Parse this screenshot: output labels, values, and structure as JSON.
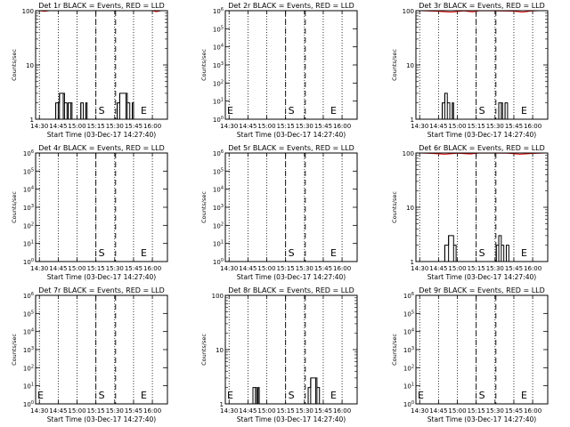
{
  "figure": {
    "ylabel": "Counts/sec",
    "xlabel": "Start Time (03-Dec-17 14:27:40)"
  },
  "colors": {
    "events": "#000000",
    "lld": "#dd0000",
    "frame": "#000000"
  },
  "chart_data": [
    {
      "type": "line",
      "title": "Det 1r BLACK = Events, RED = LLD",
      "xticks": [
        "14:30",
        "14:45",
        "15:00",
        "15:15",
        "15:30",
        "15:45",
        "16:00"
      ],
      "yscale": "log",
      "ylim": [
        1,
        100
      ],
      "yticks": [
        "1",
        "10",
        "100"
      ],
      "markers": {
        "S": "15:15",
        "E": "15:45"
      },
      "events": [
        [
          "14:42",
          1
        ],
        [
          "14:43",
          2
        ],
        [
          "14:45",
          2
        ],
        [
          "14:46",
          3
        ],
        [
          "14:49",
          3
        ],
        [
          "14:50",
          2
        ],
        [
          "14:52",
          1
        ],
        [
          "14:53",
          2
        ],
        [
          "14:55",
          2
        ],
        [
          "14:56",
          1
        ],
        [
          "15:02",
          1
        ],
        [
          "15:03",
          2
        ],
        [
          "15:05",
          1
        ],
        [
          "15:06",
          1
        ],
        [
          "15:07",
          2
        ],
        [
          "15:08",
          1
        ],
        [
          "15:31",
          1
        ],
        [
          "15:32",
          2
        ],
        [
          "15:34",
          3
        ],
        [
          "15:39",
          3
        ],
        [
          "15:40",
          2
        ],
        [
          "15:42",
          1
        ],
        [
          "15:44",
          2
        ],
        [
          "15:45",
          1
        ]
      ],
      "lld": [
        [
          "14:30",
          100
        ],
        [
          "14:34",
          97
        ],
        [
          "14:38",
          100
        ],
        [
          "16:00",
          100
        ],
        [
          "16:03",
          96
        ],
        [
          "16:07",
          100
        ]
      ]
    },
    {
      "type": "line",
      "title": "Det 2r BLACK = Events, RED = LLD",
      "xticks": [
        "14:30",
        "14:45",
        "15:00",
        "15:15",
        "15:30",
        "15:45",
        "16:00"
      ],
      "yscale": "log",
      "ylim": [
        1,
        1000000
      ],
      "yticks": [
        "10^0",
        "10^1",
        "10^2",
        "10^3",
        "10^4",
        "10^5",
        "10^6"
      ],
      "markers": {
        "E": "14:30",
        "S": "15:15",
        "E2": "15:45"
      },
      "events": [],
      "lld": []
    },
    {
      "type": "line",
      "title": "Det 3r BLACK = Events, RED = LLD",
      "xticks": [
        "14:30",
        "14:45",
        "15:00",
        "15:15",
        "15:30",
        "15:45",
        "16:00"
      ],
      "yscale": "log",
      "ylim": [
        1,
        100
      ],
      "yticks": [
        "1",
        "10",
        "100"
      ],
      "markers": {
        "S": "15:15",
        "E": "15:45"
      },
      "events": [
        [
          "14:47",
          1
        ],
        [
          "14:48",
          2
        ],
        [
          "14:50",
          3
        ],
        [
          "14:52",
          2
        ],
        [
          "14:54",
          1
        ],
        [
          "14:56",
          2
        ],
        [
          "14:57",
          1
        ],
        [
          "15:31",
          1
        ],
        [
          "15:33",
          2
        ],
        [
          "15:35",
          2
        ],
        [
          "15:36",
          1
        ],
        [
          "15:38",
          2
        ],
        [
          "15:40",
          1
        ]
      ],
      "lld": [
        [
          "14:30",
          100
        ],
        [
          "14:45",
          97
        ],
        [
          "14:55",
          94
        ],
        [
          "15:05",
          99
        ],
        [
          "15:12",
          95
        ],
        [
          "15:18",
          100
        ],
        [
          "15:44",
          98
        ],
        [
          "15:52",
          94
        ],
        [
          "15:58",
          98
        ],
        [
          "16:05",
          100
        ]
      ]
    },
    {
      "type": "line",
      "title": "Det 4r BLACK = Events, RED = LLD",
      "xticks": [
        "14:30",
        "14:45",
        "15:00",
        "15:15",
        "15:30",
        "15:45",
        "16:00"
      ],
      "yscale": "log",
      "ylim": [
        1,
        1000000
      ],
      "yticks": [
        "10^0",
        "10^1",
        "10^2",
        "10^3",
        "10^4",
        "10^5",
        "10^6"
      ],
      "markers": {
        "S": "15:15",
        "E": "15:45"
      },
      "events": [],
      "lld": []
    },
    {
      "type": "line",
      "title": "Det 5r BLACK = Events, RED = LLD",
      "xticks": [
        "14:30",
        "14:45",
        "15:00",
        "15:15",
        "15:30",
        "15:45",
        "16:00"
      ],
      "yscale": "log",
      "ylim": [
        1,
        1000000
      ],
      "yticks": [
        "10^0",
        "10^1",
        "10^2",
        "10^3",
        "10^4",
        "10^5",
        "10^6"
      ],
      "markers": {
        "S": "15:15",
        "E": "15:45"
      },
      "events": [],
      "lld": []
    },
    {
      "type": "line",
      "title": "Det 6r BLACK = Events, RED = LLD",
      "xticks": [
        "14:30",
        "14:45",
        "15:00",
        "15:15",
        "15:30",
        "15:45",
        "16:00"
      ],
      "yscale": "log",
      "ylim": [
        1,
        100
      ],
      "yticks": [
        "1",
        "10",
        "100"
      ],
      "markers": {
        "S": "15:15",
        "E": "15:45"
      },
      "events": [
        [
          "14:48",
          1
        ],
        [
          "14:50",
          2
        ],
        [
          "14:53",
          3
        ],
        [
          "14:57",
          2
        ],
        [
          "14:59",
          1
        ],
        [
          "15:30",
          1
        ],
        [
          "15:31",
          2
        ],
        [
          "15:33",
          3
        ],
        [
          "15:35",
          2
        ],
        [
          "15:37",
          1
        ],
        [
          "15:39",
          2
        ],
        [
          "15:41",
          1
        ]
      ],
      "lld": [
        [
          "14:30",
          100
        ],
        [
          "14:40",
          98
        ],
        [
          "14:50",
          95
        ],
        [
          "15:00",
          99
        ],
        [
          "15:10",
          96
        ],
        [
          "15:18",
          100
        ],
        [
          "15:40",
          99
        ],
        [
          "15:50",
          95
        ],
        [
          "16:00",
          98
        ],
        [
          "16:10",
          100
        ]
      ]
    },
    {
      "type": "line",
      "title": "Det 7r BLACK = Events, RED = LLD",
      "xticks": [
        "14:30",
        "14:45",
        "15:00",
        "15:15",
        "15:30",
        "15:45",
        "16:00"
      ],
      "yscale": "log",
      "ylim": [
        1,
        1000000
      ],
      "yticks": [
        "10^0",
        "10^1",
        "10^2",
        "10^3",
        "10^4",
        "10^5",
        "10^6"
      ],
      "markers": {
        "E": "14:30",
        "S": "15:15",
        "E2": "15:45"
      },
      "events": [],
      "lld": []
    },
    {
      "type": "line",
      "title": "Det 8r BLACK = Events, RED = LLD",
      "xticks": [
        "14:30",
        "14:45",
        "15:00",
        "15:15",
        "15:30",
        "15:45",
        "16:00"
      ],
      "yscale": "log",
      "ylim": [
        1,
        100
      ],
      "yticks": [
        "1",
        "10",
        "100"
      ],
      "markers": {
        "E": "14:30",
        "S": "15:15",
        "E2": "15:45"
      },
      "events": [
        [
          "14:47",
          1
        ],
        [
          "14:49",
          2
        ],
        [
          "14:51",
          2
        ],
        [
          "14:52",
          1
        ],
        [
          "14:53",
          2
        ],
        [
          "14:54",
          1
        ],
        [
          "15:31",
          1
        ],
        [
          "15:33",
          2
        ],
        [
          "15:35",
          3
        ],
        [
          "15:39",
          3
        ],
        [
          "15:40",
          2
        ],
        [
          "15:42",
          1
        ]
      ],
      "lld": []
    },
    {
      "type": "line",
      "title": "Det 9r BLACK = Events, RED = LLD",
      "xticks": [
        "14:30",
        "14:45",
        "15:00",
        "15:15",
        "15:30",
        "15:45",
        "16:00"
      ],
      "yscale": "log",
      "ylim": [
        1,
        1000000
      ],
      "yticks": [
        "10^0",
        "10^1",
        "10^2",
        "10^3",
        "10^4",
        "10^5",
        "10^6"
      ],
      "markers": {
        "E": "14:30",
        "S": "15:15",
        "E2": "15:45"
      },
      "events": [],
      "lld": []
    }
  ]
}
